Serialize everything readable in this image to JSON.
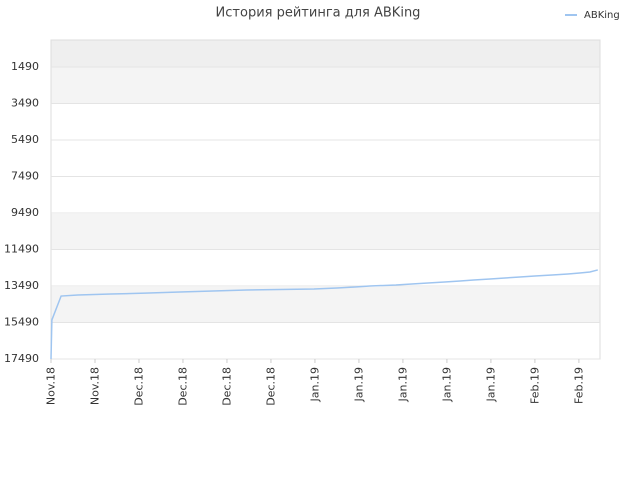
{
  "chart_data": {
    "type": "line",
    "title": "История рейтинга для ABKing",
    "x": [
      0,
      0.02,
      0.23,
      0.61,
      1.36,
      2.14,
      2.93,
      3.68,
      4.45,
      5.2,
      5.98,
      6.5,
      6.91,
      7.25,
      7.84,
      8.2,
      8.57,
      8.95,
      9.3,
      9.61,
      9.98,
      10.32,
      10.66,
      11,
      11.39,
      11.75,
      12.02,
      12.25,
      12.43
    ],
    "series": [
      {
        "name": "ABKing",
        "color": "#9fc5f0",
        "values": [
          17490,
          15350,
          14040,
          13985,
          13930,
          13880,
          13820,
          13765,
          13710,
          13680,
          13655,
          13600,
          13545,
          13490,
          13435,
          13380,
          13325,
          13270,
          13215,
          13160,
          13105,
          13050,
          12995,
          12940,
          12885,
          12830,
          12775,
          12720,
          12610
        ]
      }
    ],
    "xlim": [
      0,
      12.48
    ],
    "xticks": [
      {
        "value": 0,
        "label": "Nov.18"
      },
      {
        "value": 1,
        "label": "Nov.18"
      },
      {
        "value": 2,
        "label": "Dec.18"
      },
      {
        "value": 3,
        "label": "Dec.18"
      },
      {
        "value": 4,
        "label": "Dec.18"
      },
      {
        "value": 5,
        "label": "Dec.18"
      },
      {
        "value": 6,
        "label": "Jan.19"
      },
      {
        "value": 7,
        "label": "Jan.19"
      },
      {
        "value": 8,
        "label": "Jan.19"
      },
      {
        "value": 9,
        "label": "Jan.19"
      },
      {
        "value": 10,
        "label": "Jan.19"
      },
      {
        "value": 11,
        "label": "Feb.19"
      },
      {
        "value": 12,
        "label": "Feb.19"
      }
    ],
    "ylim": [
      17490,
      10
    ],
    "yticks": [
      1490,
      3490,
      5490,
      7490,
      9490,
      11490,
      13490,
      15490,
      17490
    ],
    "y_inverted": true,
    "grid": true,
    "legend": "top-right"
  }
}
